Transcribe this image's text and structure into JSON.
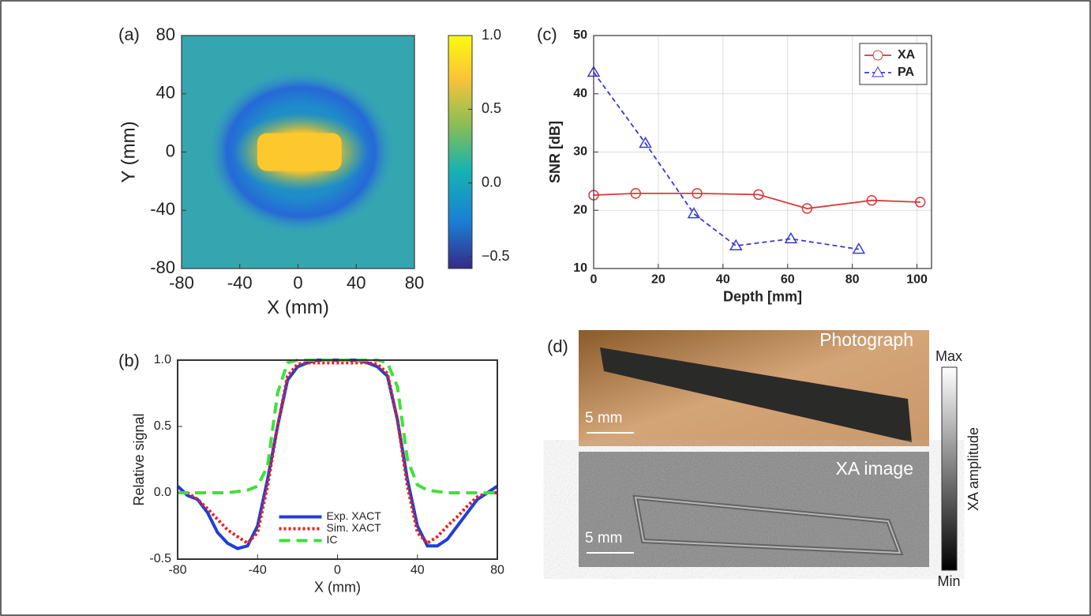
{
  "chart_data": [
    {
      "type": "heatmap",
      "panel_label": "(a)",
      "xlabel": "X (mm)",
      "ylabel": "Y (mm)",
      "xlim": [
        -80,
        80
      ],
      "ylim": [
        -80,
        80
      ],
      "xticks": [
        -80,
        -40,
        0,
        40,
        80
      ],
      "yticks": [
        -80,
        -40,
        0,
        40,
        80
      ],
      "clim": [
        -0.58,
        1.0
      ],
      "cticks": [
        {
          "value": 1.0,
          "label": "1.0"
        },
        {
          "value": 0.5,
          "label": "0.5"
        },
        {
          "value": 0,
          "label": "0.0"
        },
        {
          "value": -0.5,
          "label": "−0.5"
        }
      ]
    },
    {
      "type": "line",
      "panel_label": "(b)",
      "xlabel": "X (mm)",
      "ylabel": "Relative signal",
      "xlim": [
        -80,
        80
      ],
      "ylim": [
        -0.5,
        1.0
      ],
      "xticks": [
        -80,
        -40,
        0,
        40,
        80
      ],
      "yticks": [
        {
          "value": -0.5,
          "label": "-0.5"
        },
        {
          "value": 0,
          "label": "0.0"
        },
        {
          "value": 0.5,
          "label": "0.5"
        },
        {
          "value": 1.0,
          "label": "1.0"
        }
      ],
      "grid": false,
      "legend": "lower center",
      "x": [
        -80,
        -75,
        -70,
        -65,
        -60,
        -55,
        -50,
        -45,
        -40,
        -35,
        -30,
        -25,
        -20,
        -15,
        -10,
        -5,
        0,
        5,
        10,
        15,
        20,
        25,
        30,
        35,
        40,
        45,
        50,
        55,
        60,
        65,
        70,
        75,
        80
      ],
      "series": [
        {
          "name": "Exp. XACT",
          "color": "#1f3fd8",
          "style": "solid",
          "values": [
            0.05,
            -0.02,
            -0.05,
            -0.15,
            -0.3,
            -0.38,
            -0.42,
            -0.4,
            -0.25,
            0.1,
            0.5,
            0.85,
            0.95,
            0.98,
            1.0,
            1.0,
            1.0,
            1.0,
            1.0,
            0.98,
            0.95,
            0.88,
            0.55,
            0.1,
            -0.25,
            -0.4,
            -0.4,
            -0.35,
            -0.25,
            -0.15,
            -0.05,
            0,
            0.05
          ]
        },
        {
          "name": "Sim. XACT",
          "color": "#e8201c",
          "style": "dotted",
          "values": [
            0,
            0,
            -0.05,
            -0.12,
            -0.2,
            -0.28,
            -0.33,
            -0.38,
            -0.3,
            0.05,
            0.5,
            0.88,
            0.97,
            0.98,
            0.98,
            0.98,
            0.98,
            0.98,
            0.98,
            0.98,
            0.97,
            0.9,
            0.55,
            0.05,
            -0.3,
            -0.38,
            -0.33,
            -0.25,
            -0.18,
            -0.1,
            -0.03,
            0,
            0
          ]
        },
        {
          "name": "IC",
          "color": "#3ee03a",
          "style": "dashed",
          "values": [
            0,
            0,
            0,
            0,
            0,
            0,
            0.01,
            0.02,
            0.05,
            0.2,
            0.75,
            0.98,
            1.0,
            1.0,
            1.0,
            1.0,
            1.0,
            1.0,
            1.0,
            1.0,
            1.0,
            0.98,
            0.8,
            0.25,
            0.06,
            0.02,
            0.01,
            0,
            0,
            0,
            0,
            0,
            0
          ]
        }
      ]
    },
    {
      "type": "line",
      "panel_label": "(c)",
      "xlabel": "Depth [mm]",
      "ylabel": "SNR [dB]",
      "xlim": [
        0,
        104.5
      ],
      "ylim": [
        10,
        50
      ],
      "xticks": [
        0,
        20,
        40,
        60,
        80,
        100
      ],
      "yticks": [
        10,
        20,
        30,
        40,
        50
      ],
      "grid": true,
      "legend": "upper right",
      "series": [
        {
          "name": "XA",
          "color": "#d63a3a",
          "style": "solid",
          "marker": "circle",
          "x": [
            0,
            13,
            32,
            51,
            66,
            86,
            101
          ],
          "values": [
            22.6,
            22.9,
            22.9,
            22.7,
            20.3,
            21.7,
            21.4
          ]
        },
        {
          "name": "PA",
          "color": "#3a3ad6",
          "style": "dashed",
          "marker": "triangle",
          "x": [
            0,
            16,
            31,
            44,
            61,
            82
          ],
          "values": [
            43.7,
            31.5,
            19.4,
            13.9,
            15.1,
            13.3
          ]
        }
      ]
    }
  ],
  "image_panel": {
    "panel_label": "(d)",
    "photo_label": "Photograph",
    "xa_label": "XA image",
    "scalebar_labels": [
      "5 mm",
      "5 mm"
    ],
    "colorbar": {
      "max_label": "Max",
      "min_label": "Min",
      "label": "XA amplitude"
    }
  }
}
